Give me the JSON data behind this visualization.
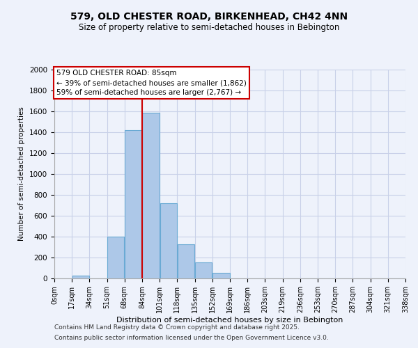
{
  "title": "579, OLD CHESTER ROAD, BIRKENHEAD, CH42 4NN",
  "subtitle": "Size of property relative to semi-detached houses in Bebington",
  "xlabel": "Distribution of semi-detached houses by size in Bebington",
  "ylabel": "Number of semi-detached properties",
  "bin_edges": [
    0,
    17,
    34,
    51,
    68,
    85,
    102,
    119,
    136,
    153,
    170,
    187,
    204,
    221,
    238,
    255,
    272,
    289,
    306,
    323,
    340
  ],
  "bin_labels": [
    "0sqm",
    "17sqm",
    "34sqm",
    "51sqm",
    "68sqm",
    "84sqm",
    "101sqm",
    "118sqm",
    "135sqm",
    "152sqm",
    "169sqm",
    "186sqm",
    "203sqm",
    "219sqm",
    "236sqm",
    "253sqm",
    "270sqm",
    "287sqm",
    "304sqm",
    "321sqm",
    "338sqm"
  ],
  "bar_heights": [
    0,
    30,
    0,
    400,
    1420,
    1590,
    720,
    325,
    155,
    55,
    0,
    0,
    0,
    0,
    0,
    0,
    0,
    0,
    0,
    0
  ],
  "bar_color": "#adc8e8",
  "bar_edge_color": "#6aaad4",
  "property_line_x": 85,
  "ylim": [
    0,
    2000
  ],
  "yticks": [
    0,
    200,
    400,
    600,
    800,
    1000,
    1200,
    1400,
    1600,
    1800,
    2000
  ],
  "annotation_title": "579 OLD CHESTER ROAD: 85sqm",
  "annotation_line1": "← 39% of semi-detached houses are smaller (1,862)",
  "annotation_line2": "59% of semi-detached houses are larger (2,767) →",
  "annotation_box_color": "#ffffff",
  "annotation_box_edge_color": "#cc0000",
  "background_color": "#eef2fb",
  "grid_color": "#c8d0e8",
  "footer1": "Contains HM Land Registry data © Crown copyright and database right 2025.",
  "footer2": "Contains public sector information licensed under the Open Government Licence v3.0."
}
